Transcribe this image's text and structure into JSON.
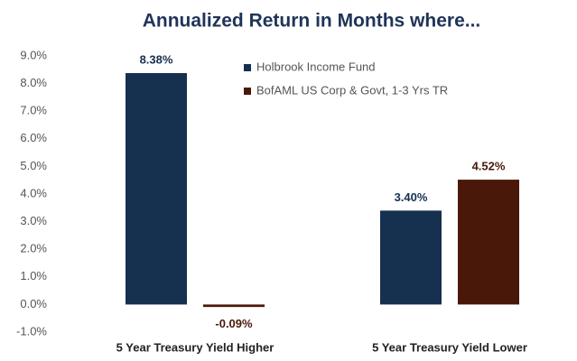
{
  "chart_data": {
    "type": "bar",
    "title": "Annualized Return in Months where...",
    "categories": [
      "5 Year Treasury Yield Higher",
      "5 Year Treasury Yield Lower"
    ],
    "series": [
      {
        "name": "Holbrook Income Fund",
        "color": "#16304f",
        "values": [
          8.38,
          3.4
        ],
        "value_labels": [
          "8.38%",
          "3.40%"
        ]
      },
      {
        "name": "BofAML US Corp & Govt, 1-3 Yrs TR",
        "color": "#4a1808",
        "values": [
          -0.09,
          4.52
        ],
        "value_labels": [
          "-0.09%",
          "4.52%"
        ]
      }
    ],
    "ylim": [
      -1.0,
      9.0
    ],
    "yticks": [
      {
        "value": -1.0,
        "label": "-1.0%"
      },
      {
        "value": 0.0,
        "label": "0.0%"
      },
      {
        "value": 1.0,
        "label": "1.0%"
      },
      {
        "value": 2.0,
        "label": "2.0%"
      },
      {
        "value": 3.0,
        "label": "3.0%"
      },
      {
        "value": 4.0,
        "label": "4.0%"
      },
      {
        "value": 5.0,
        "label": "5.0%"
      },
      {
        "value": 6.0,
        "label": "6.0%"
      },
      {
        "value": 7.0,
        "label": "7.0%"
      },
      {
        "value": 8.0,
        "label": "8.0%"
      },
      {
        "value": 9.0,
        "label": "9.0%"
      }
    ],
    "grid": false,
    "legend": "upper center"
  }
}
